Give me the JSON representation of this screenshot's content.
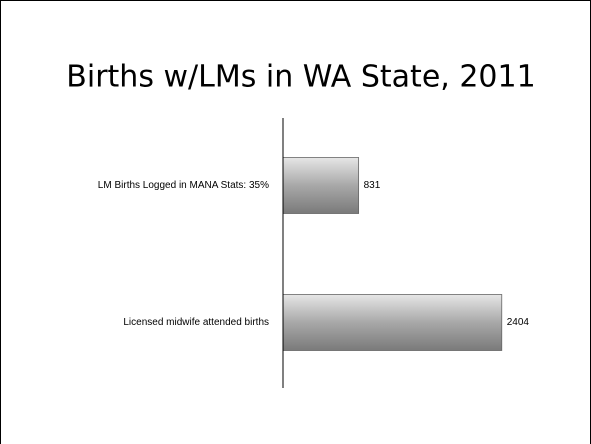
{
  "chart_data": {
    "type": "bar",
    "orientation": "horizontal",
    "title": "Births w/LMs in WA State, 2011",
    "categories": [
      "LM Births Logged in MANA Stats: 35%",
      "Licensed midwife attended births"
    ],
    "values": [
      831,
      2404
    ],
    "color": "#a8a8a8",
    "xlim": [
      0,
      3000
    ]
  }
}
